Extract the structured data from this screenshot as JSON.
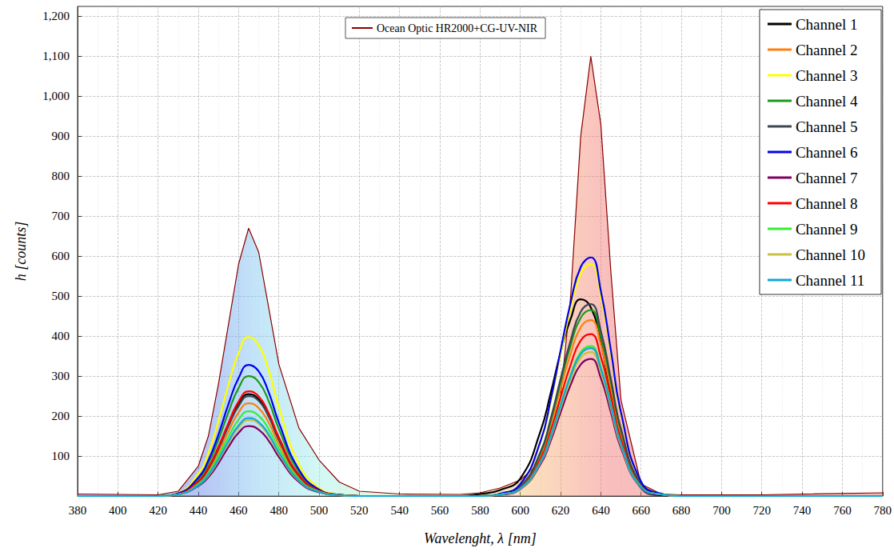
{
  "chart_data": {
    "type": "line",
    "x_label": "Wavelenght, λ [nm]",
    "y_label": "h [counts]",
    "xlim": [
      380,
      780
    ],
    "xticks": [
      380,
      400,
      420,
      440,
      460,
      480,
      500,
      520,
      540,
      560,
      580,
      600,
      620,
      640,
      660,
      680,
      700,
      720,
      740,
      760,
      780
    ],
    "ylim": [
      0,
      1225
    ],
    "yticks": [
      100,
      200,
      300,
      400,
      500,
      600,
      700,
      800,
      900,
      1000,
      1100,
      1200
    ],
    "grid": true,
    "legend": "upper right",
    "x": [
      380,
      420,
      430,
      440,
      445,
      450,
      455,
      460,
      465,
      470,
      475,
      480,
      490,
      500,
      510,
      520,
      540,
      570,
      580,
      590,
      600,
      610,
      615,
      620,
      625,
      630,
      635,
      640,
      645,
      650,
      660,
      670,
      680,
      720,
      780
    ],
    "series": [
      {
        "name": "Ocean Optic HR2000+CG-UV-NIR",
        "type": "area",
        "color": "#8b0000",
        "values": [
          5,
          3,
          12,
          75,
          150,
          280,
          430,
          580,
          670,
          610,
          470,
          330,
          170,
          90,
          35,
          12,
          5,
          4,
          8,
          20,
          40,
          85,
          140,
          250,
          500,
          900,
          1100,
          930,
          560,
          240,
          30,
          5,
          3,
          3,
          8
        ]
      },
      {
        "name": "Channel 1",
        "type": "line",
        "color": "#000000",
        "values": [
          0,
          0,
          5,
          36,
          69,
          120,
          179,
          230,
          255,
          242,
          201,
          143,
          51,
          13,
          3,
          0,
          0,
          0,
          5,
          15,
          44,
          162,
          256,
          359,
          443,
          492,
          472,
          384,
          256,
          138,
          20,
          2,
          0,
          0,
          0
        ]
      },
      {
        "name": "Channel 2",
        "type": "line",
        "color": "#ff7f0e",
        "values": [
          0,
          0,
          5,
          32,
          63,
          109,
          162,
          209,
          232,
          220,
          183,
          130,
          46,
          12,
          2,
          0,
          0,
          0,
          0,
          4,
          22,
          101,
          176,
          268,
          356,
          422,
          440,
          378,
          268,
          154,
          26,
          4,
          0,
          0,
          0
        ]
      },
      {
        "name": "Channel 3",
        "type": "line",
        "color": "#ffff00",
        "values": [
          0,
          0,
          8,
          56,
          107,
          187,
          279,
          358,
          398,
          378,
          314,
          223,
          80,
          20,
          4,
          0,
          0,
          0,
          0,
          6,
          29,
          133,
          232,
          354,
          470,
          557,
          580,
          499,
          354,
          203,
          35,
          6,
          0,
          0,
          0
        ]
      },
      {
        "name": "Channel 4",
        "type": "line",
        "color": "#1a9a1a",
        "values": [
          0,
          0,
          6,
          42,
          81,
          141,
          210,
          270,
          300,
          285,
          237,
          168,
          60,
          15,
          3,
          0,
          0,
          0,
          0,
          5,
          23,
          107,
          186,
          284,
          377,
          446,
          465,
          400,
          284,
          163,
          28,
          5,
          0,
          0,
          0
        ]
      },
      {
        "name": "Channel 5",
        "type": "line",
        "color": "#3c4650",
        "values": [
          0,
          0,
          5,
          35,
          68,
          118,
          175,
          225,
          250,
          238,
          198,
          140,
          50,
          13,
          3,
          0,
          0,
          0,
          0,
          5,
          24,
          110,
          192,
          293,
          389,
          461,
          480,
          413,
          293,
          168,
          29,
          5,
          0,
          0,
          0
        ]
      },
      {
        "name": "Channel 6",
        "type": "line",
        "color": "#0000ee",
        "values": [
          0,
          0,
          7,
          46,
          89,
          154,
          230,
          295,
          328,
          312,
          259,
          184,
          66,
          16,
          3,
          0,
          0,
          0,
          0,
          6,
          30,
          137,
          239,
          364,
          484,
          573,
          597,
          513,
          364,
          209,
          36,
          6,
          0,
          0,
          0
        ]
      },
      {
        "name": "Channel 7",
        "type": "line",
        "color": "#800060",
        "values": [
          0,
          0,
          4,
          25,
          47,
          82,
          123,
          158,
          175,
          166,
          138,
          98,
          35,
          9,
          2,
          0,
          0,
          0,
          0,
          3,
          17,
          79,
          137,
          209,
          278,
          329,
          343,
          295,
          209,
          120,
          21,
          3,
          0,
          0,
          0
        ]
      },
      {
        "name": "Channel 8",
        "type": "line",
        "color": "#ff0000",
        "values": [
          0,
          0,
          5,
          37,
          71,
          123,
          183,
          236,
          262,
          249,
          207,
          147,
          52,
          13,
          3,
          0,
          0,
          0,
          0,
          4,
          20,
          93,
          162,
          247,
          328,
          389,
          405,
          348,
          247,
          142,
          24,
          4,
          0,
          0,
          0
        ]
      },
      {
        "name": "Channel 9",
        "type": "line",
        "color": "#33ee33",
        "values": [
          0,
          0,
          4,
          30,
          57,
          100,
          148,
          191,
          212,
          201,
          167,
          119,
          42,
          11,
          2,
          0,
          0,
          0,
          0,
          4,
          19,
          86,
          150,
          229,
          304,
          360,
          375,
          323,
          229,
          131,
          23,
          4,
          0,
          0,
          0
        ]
      },
      {
        "name": "Channel 10",
        "type": "line",
        "color": "#c8c040",
        "values": [
          0,
          0,
          4,
          27,
          51,
          89,
          133,
          171,
          190,
          181,
          150,
          106,
          38,
          10,
          2,
          0,
          0,
          0,
          0,
          4,
          18,
          83,
          144,
          220,
          292,
          346,
          360,
          310,
          220,
          126,
          22,
          4,
          0,
          0,
          0
        ]
      },
      {
        "name": "Channel 11",
        "type": "line",
        "color": "#10a8d8",
        "values": [
          0,
          0,
          4,
          27,
          53,
          92,
          137,
          176,
          195,
          185,
          154,
          109,
          39,
          10,
          2,
          0,
          0,
          0,
          0,
          4,
          19,
          85,
          148,
          226,
          300,
          355,
          370,
          318,
          226,
          130,
          22,
          4,
          0,
          0,
          0
        ]
      }
    ]
  }
}
